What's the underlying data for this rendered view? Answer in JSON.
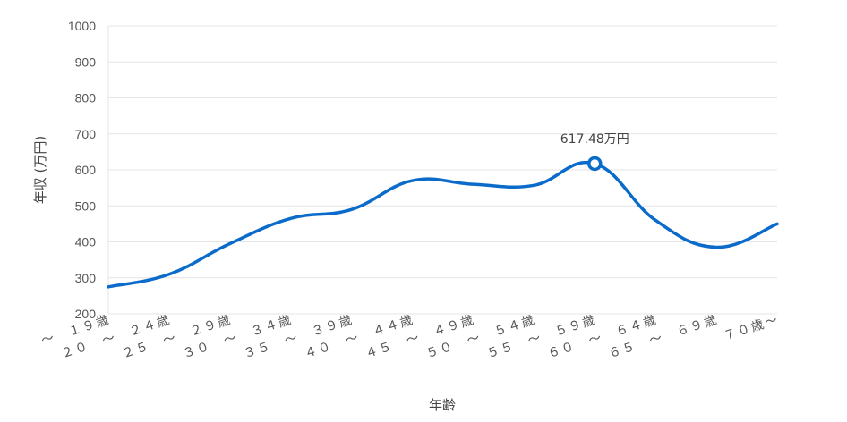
{
  "chart_data": {
    "type": "line",
    "xlabel": "年齢",
    "ylabel": "年収 (万円)",
    "ylim": [
      200,
      1000
    ],
    "yticks": [
      200,
      300,
      400,
      500,
      600,
      700,
      800,
      900,
      1000
    ],
    "grid": true,
    "categories": [
      "～　１９歳",
      "２０　～　２４歳",
      "２５　～　２９歳",
      "３０　～　３４歳",
      "３５　～　３９歳",
      "４０　～　４４歳",
      "４５　～　４９歳",
      "５０　～　５４歳",
      "５５　～　５９歳",
      "６０　～　６４歳",
      "６５　～　６９歳",
      "７０歳～"
    ],
    "series": [
      {
        "color": "#0b6bcb",
        "values": [
          275,
          310,
          395,
          465,
          490,
          570,
          560,
          557,
          617.48,
          460,
          385,
          450
        ]
      }
    ],
    "annotation": {
      "index": 8,
      "text": "617.48万円"
    }
  }
}
